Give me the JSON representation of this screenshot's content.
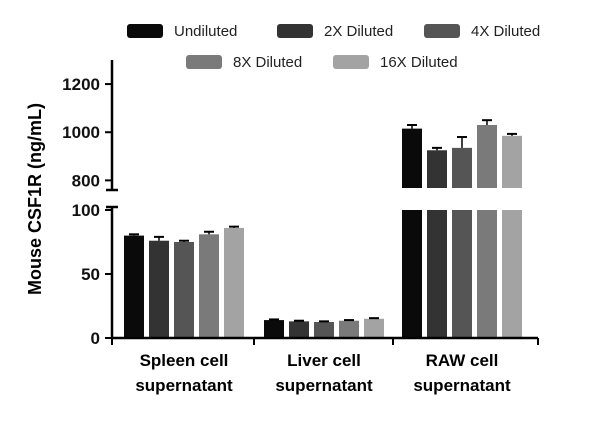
{
  "chart_data": {
    "type": "bar",
    "ylabel": "Mouse CSF1R (ng/mL)",
    "categories": [
      {
        "line1": "Spleen cell",
        "line2": "supernatant"
      },
      {
        "line1": "Liver cell",
        "line2": "supernatant"
      },
      {
        "line1": "RAW cell",
        "line2": "supernatant"
      }
    ],
    "series": [
      {
        "name": "Undiluted",
        "color": "#0a0a0a",
        "values": [
          80,
          14,
          1015
        ],
        "errors": [
          1,
          0.5,
          15
        ]
      },
      {
        "name": "2X Diluted",
        "color": "#333333",
        "values": [
          76,
          13,
          925
        ],
        "errors": [
          3,
          0.5,
          10
        ]
      },
      {
        "name": "4X Diluted",
        "color": "#555555",
        "values": [
          75,
          12.5,
          935
        ],
        "errors": [
          1,
          0.5,
          45
        ]
      },
      {
        "name": "8X Diluted",
        "color": "#7a7a7a",
        "values": [
          81,
          13.5,
          1030
        ],
        "errors": [
          2,
          0.5,
          20
        ]
      },
      {
        "name": "16X Diluted",
        "color": "#a3a3a3",
        "values": [
          86,
          15,
          985
        ],
        "errors": [
          1,
          0.5,
          8
        ]
      }
    ],
    "axis_break": {
      "lower_range": [
        0,
        100
      ],
      "upper_range": [
        760,
        1300
      ]
    },
    "lower_ticks": [
      0,
      50,
      100
    ],
    "upper_ticks": [
      800,
      1000,
      1200
    ],
    "legend_position": "top"
  }
}
